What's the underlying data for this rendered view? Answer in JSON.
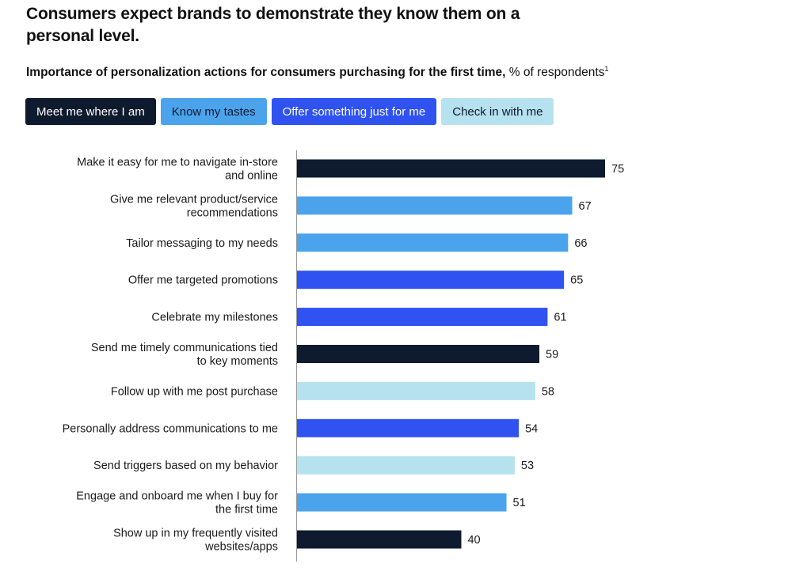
{
  "headline": "Consumers expect brands to demonstrate they know them on a personal level.",
  "subtitle": {
    "bold": "Importance of personalization actions for consumers purchasing for the first time,",
    "normal": " % of respondents",
    "footnote": "1"
  },
  "colors": {
    "meet": "#0e1b2e",
    "tastes": "#4ba3ec",
    "offer": "#2f52f0",
    "checkin": "#b6e1ee",
    "axis": "#999999"
  },
  "legend": [
    {
      "label": "Meet me where I am",
      "key": "meet"
    },
    {
      "label": "Know my tastes",
      "key": "tastes"
    },
    {
      "label": "Offer something just for me",
      "key": "offer"
    },
    {
      "label": "Check in with me",
      "key": "checkin"
    }
  ],
  "chart_data": {
    "type": "bar",
    "orientation": "horizontal",
    "xlim": [
      0,
      100
    ],
    "grid": false,
    "categories": [
      [
        "Make it easy for me to navigate in-store",
        "and online"
      ],
      [
        "Give me relevant product/service",
        "recommendations"
      ],
      [
        "Tailor messaging to my needs"
      ],
      [
        "Offer me targeted promotions"
      ],
      [
        "Celebrate my milestones"
      ],
      [
        "Send me timely communications tied",
        "to key moments"
      ],
      [
        "Follow up with me post purchase"
      ],
      [
        "Personally address communications to me"
      ],
      [
        "Send triggers based on my behavior"
      ],
      [
        "Engage and onboard me when I buy for",
        "the first time"
      ],
      [
        "Show up in my frequently visited",
        "websites/apps"
      ]
    ],
    "values": [
      75,
      67,
      66,
      65,
      61,
      59,
      58,
      54,
      53,
      51,
      40
    ],
    "groups": [
      "meet",
      "tastes",
      "tastes",
      "offer",
      "offer",
      "meet",
      "checkin",
      "offer",
      "checkin",
      "tastes",
      "meet"
    ]
  }
}
